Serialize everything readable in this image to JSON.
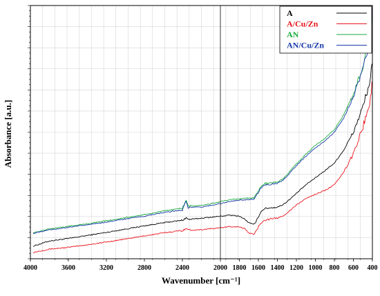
{
  "chart_data": {
    "type": "line",
    "xlabel": "Wavenumber [cm⁻¹]",
    "ylabel": "Absorbance [a.u.]",
    "xlim": [
      4000,
      400
    ],
    "x_reversed": true,
    "x_ticks": [
      4000,
      3600,
      3200,
      2800,
      2400,
      2000,
      1800,
      1600,
      1400,
      1200,
      1000,
      800,
      600,
      400
    ],
    "ylim": [
      0,
      1
    ],
    "y_tick_labels_shown": false,
    "grid": true,
    "vertical_marker_x": 2000,
    "legend_position": "top-right",
    "series": [
      {
        "name": "A",
        "color": "#000000",
        "points": [
          [
            3970,
            0.05
          ],
          [
            3800,
            0.07
          ],
          [
            3600,
            0.08
          ],
          [
            3400,
            0.092
          ],
          [
            3200,
            0.104
          ],
          [
            3000,
            0.117
          ],
          [
            2800,
            0.13
          ],
          [
            2600,
            0.142
          ],
          [
            2400,
            0.152
          ],
          [
            2360,
            0.162
          ],
          [
            2340,
            0.155
          ],
          [
            2200,
            0.16
          ],
          [
            2000,
            0.168
          ],
          [
            1900,
            0.172
          ],
          [
            1800,
            0.168
          ],
          [
            1750,
            0.158
          ],
          [
            1700,
            0.142
          ],
          [
            1650,
            0.135
          ],
          [
            1620,
            0.15
          ],
          [
            1580,
            0.182
          ],
          [
            1540,
            0.198
          ],
          [
            1500,
            0.2
          ],
          [
            1400,
            0.204
          ],
          [
            1350,
            0.212
          ],
          [
            1300,
            0.225
          ],
          [
            1200,
            0.258
          ],
          [
            1100,
            0.292
          ],
          [
            1000,
            0.32
          ],
          [
            900,
            0.348
          ],
          [
            800,
            0.378
          ],
          [
            700,
            0.43
          ],
          [
            600,
            0.5
          ],
          [
            500,
            0.6
          ],
          [
            420,
            0.71
          ],
          [
            405,
            0.77
          ]
        ]
      },
      {
        "name": "A/Cu/Zn",
        "color": "#e8141c",
        "points": [
          [
            3970,
            0.025
          ],
          [
            3800,
            0.038
          ],
          [
            3600,
            0.045
          ],
          [
            3400,
            0.055
          ],
          [
            3200,
            0.066
          ],
          [
            3000,
            0.078
          ],
          [
            2800,
            0.09
          ],
          [
            2600,
            0.102
          ],
          [
            2400,
            0.112
          ],
          [
            2360,
            0.12
          ],
          [
            2340,
            0.113
          ],
          [
            2200,
            0.115
          ],
          [
            2000,
            0.122
          ],
          [
            1900,
            0.127
          ],
          [
            1800,
            0.126
          ],
          [
            1750,
            0.12
          ],
          [
            1700,
            0.102
          ],
          [
            1650,
            0.095
          ],
          [
            1620,
            0.112
          ],
          [
            1580,
            0.14
          ],
          [
            1540,
            0.152
          ],
          [
            1500,
            0.155
          ],
          [
            1400,
            0.16
          ],
          [
            1350,
            0.168
          ],
          [
            1300,
            0.18
          ],
          [
            1200,
            0.212
          ],
          [
            1100,
            0.238
          ],
          [
            1000,
            0.255
          ],
          [
            900,
            0.27
          ],
          [
            800,
            0.292
          ],
          [
            700,
            0.343
          ],
          [
            600,
            0.415
          ],
          [
            500,
            0.52
          ],
          [
            420,
            0.63
          ],
          [
            405,
            0.7
          ]
        ]
      },
      {
        "name": "AN",
        "color": "#1aaa3c",
        "points": [
          [
            3970,
            0.102
          ],
          [
            3800,
            0.118
          ],
          [
            3600,
            0.128
          ],
          [
            3400,
            0.138
          ],
          [
            3200,
            0.15
          ],
          [
            3000,
            0.162
          ],
          [
            2800,
            0.174
          ],
          [
            2600,
            0.188
          ],
          [
            2400,
            0.2
          ],
          [
            2360,
            0.232
          ],
          [
            2340,
            0.208
          ],
          [
            2200,
            0.21
          ],
          [
            2000,
            0.225
          ],
          [
            1900,
            0.232
          ],
          [
            1800,
            0.237
          ],
          [
            1700,
            0.24
          ],
          [
            1650,
            0.24
          ],
          [
            1620,
            0.255
          ],
          [
            1580,
            0.282
          ],
          [
            1540,
            0.296
          ],
          [
            1500,
            0.298
          ],
          [
            1400,
            0.303
          ],
          [
            1350,
            0.313
          ],
          [
            1300,
            0.332
          ],
          [
            1200,
            0.375
          ],
          [
            1100,
            0.413
          ],
          [
            1000,
            0.448
          ],
          [
            900,
            0.475
          ],
          [
            800,
            0.51
          ],
          [
            700,
            0.57
          ],
          [
            600,
            0.65
          ],
          [
            500,
            0.76
          ],
          [
            420,
            0.88
          ],
          [
            405,
            0.96
          ]
        ]
      },
      {
        "name": "AN/Cu/Zn",
        "color": "#1638a8",
        "points": [
          [
            3970,
            0.1
          ],
          [
            3800,
            0.114
          ],
          [
            3600,
            0.124
          ],
          [
            3400,
            0.134
          ],
          [
            3200,
            0.145
          ],
          [
            3000,
            0.157
          ],
          [
            2800,
            0.168
          ],
          [
            2600,
            0.182
          ],
          [
            2400,
            0.193
          ],
          [
            2360,
            0.228
          ],
          [
            2340,
            0.202
          ],
          [
            2200,
            0.204
          ],
          [
            2000,
            0.218
          ],
          [
            1900,
            0.226
          ],
          [
            1800,
            0.231
          ],
          [
            1700,
            0.234
          ],
          [
            1650,
            0.236
          ],
          [
            1620,
            0.25
          ],
          [
            1580,
            0.277
          ],
          [
            1540,
            0.291
          ],
          [
            1500,
            0.293
          ],
          [
            1400,
            0.298
          ],
          [
            1350,
            0.308
          ],
          [
            1300,
            0.326
          ],
          [
            1200,
            0.368
          ],
          [
            1100,
            0.405
          ],
          [
            1000,
            0.438
          ],
          [
            900,
            0.465
          ],
          [
            800,
            0.5
          ],
          [
            700,
            0.558
          ],
          [
            600,
            0.64
          ],
          [
            500,
            0.75
          ],
          [
            420,
            0.87
          ],
          [
            405,
            0.99
          ]
        ]
      }
    ]
  }
}
